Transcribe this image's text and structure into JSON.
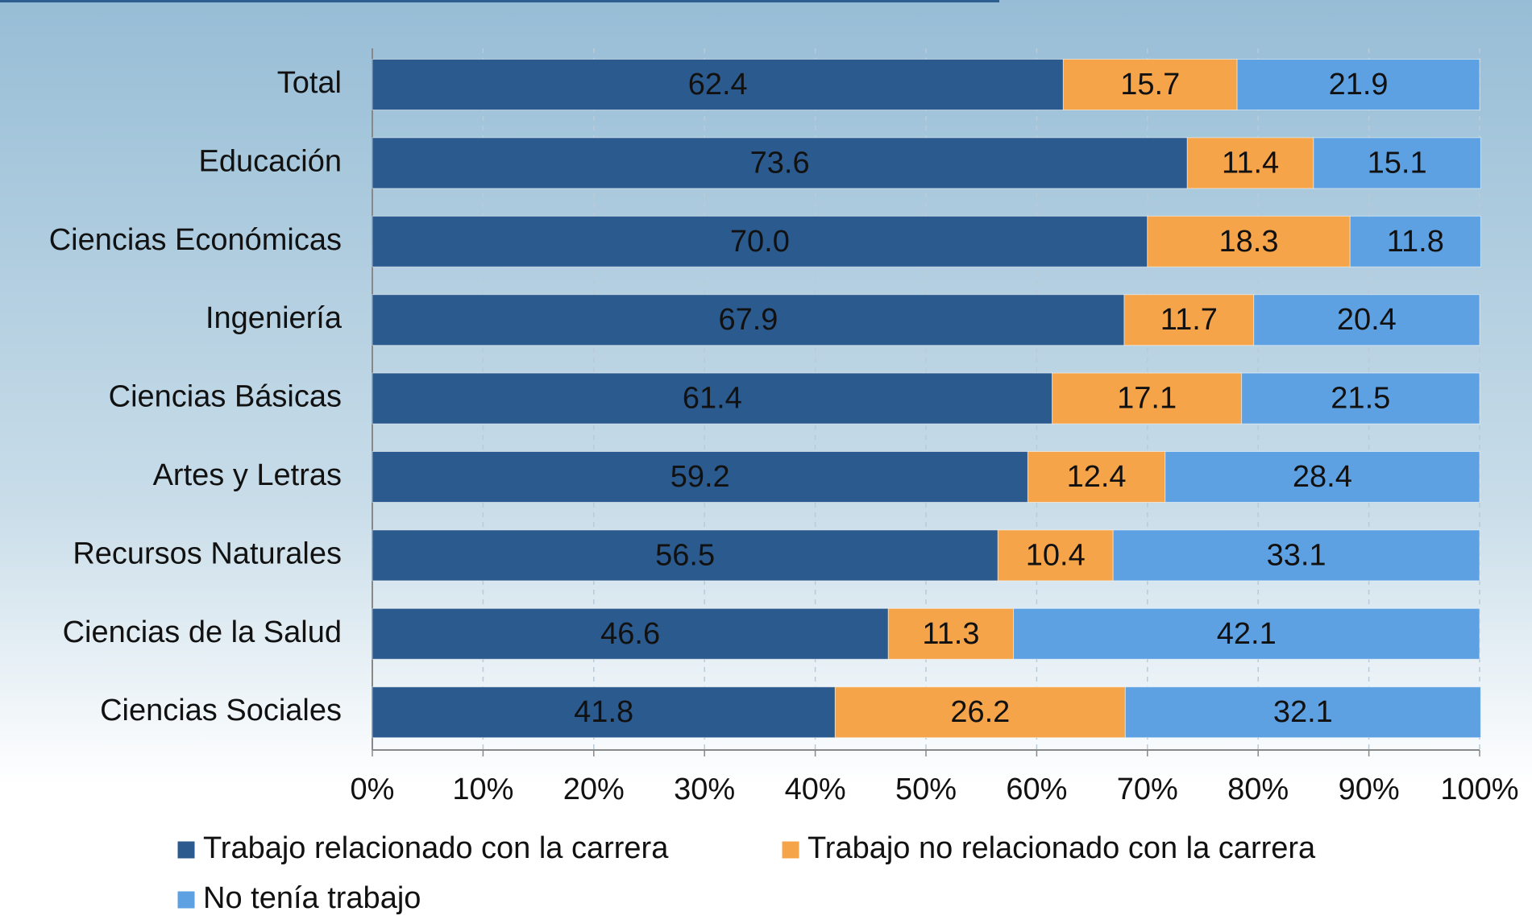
{
  "chart_data": {
    "type": "stacked_bar_horizontal",
    "categories": [
      "Total",
      "Educación",
      "Ciencias Económicas",
      "Ingeniería",
      "Ciencias Básicas",
      "Artes y Letras",
      "Recursos Naturales",
      "Ciencias de la Salud",
      "Ciencias Sociales"
    ],
    "series": [
      {
        "name": "Trabajo relacionado con la carrera",
        "color": "#2b5a8e",
        "values": [
          62.4,
          73.6,
          70.0,
          67.9,
          61.4,
          59.2,
          56.5,
          46.6,
          41.8
        ],
        "value_labels": [
          "62.4",
          "73.6",
          "70.0",
          "67.9",
          "61.4",
          "59.2",
          "56.5",
          "46.6",
          "41.8"
        ]
      },
      {
        "name": "Trabajo no relacionado con la carrera",
        "color": "#f5a44a",
        "values": [
          15.7,
          11.4,
          18.3,
          11.7,
          17.1,
          12.4,
          10.4,
          11.3,
          26.2
        ],
        "value_labels": [
          "15.7",
          "11.4",
          "18.3",
          "11.7",
          "17.1",
          "12.4",
          "10.4",
          "11.3",
          "26.2"
        ]
      },
      {
        "name": "No tenía trabajo",
        "color": "#5ea1e2",
        "values": [
          21.9,
          15.1,
          11.8,
          20.4,
          21.5,
          28.4,
          33.1,
          42.1,
          32.1
        ],
        "value_labels": [
          "21.9",
          "15.1",
          "11.8",
          "20.4",
          "21.5",
          "28.4",
          "33.1",
          "42.1",
          "32.1"
        ]
      }
    ],
    "xlim": [
      0,
      100
    ],
    "xticks": [
      {
        "value": 0,
        "label": "0%"
      },
      {
        "value": 10,
        "label": "10%"
      },
      {
        "value": 20,
        "label": "20%"
      },
      {
        "value": 30,
        "label": "30%"
      },
      {
        "value": 40,
        "label": "40%"
      },
      {
        "value": 50,
        "label": "50%"
      },
      {
        "value": 60,
        "label": "60%"
      },
      {
        "value": 70,
        "label": "70%"
      },
      {
        "value": 80,
        "label": "80%"
      },
      {
        "value": 90,
        "label": "90%"
      },
      {
        "value": 100,
        "label": "100%"
      }
    ],
    "grid": true,
    "legend": "bottom"
  }
}
